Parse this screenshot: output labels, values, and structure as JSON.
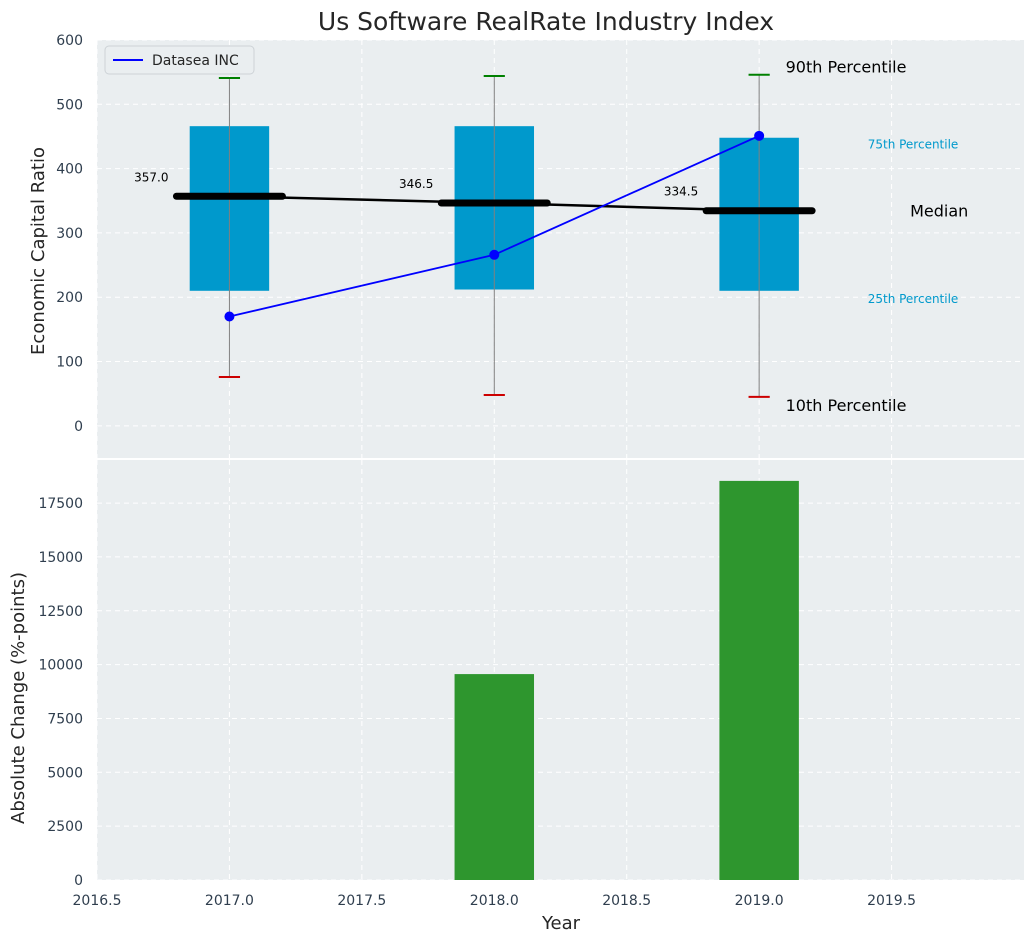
{
  "chart_data": [
    {
      "type": "box",
      "title": "Us Software RealRate Industry Index",
      "ylabel": "Economic Capital Ratio",
      "ylim": [
        -50,
        600
      ],
      "xlim": [
        2016.5,
        2020.0
      ],
      "yticks": [
        0,
        100,
        200,
        300,
        400,
        500,
        600
      ],
      "grid": true,
      "legend": {
        "placement": "top-left",
        "entries": [
          "Datasea INC"
        ]
      },
      "boxes": [
        {
          "x": 2017,
          "p10": 76,
          "p25": 210,
          "median": 357.0,
          "p75": 466,
          "p90": 541,
          "median_label": "357.0"
        },
        {
          "x": 2018,
          "p10": 48,
          "p25": 212,
          "median": 346.5,
          "p75": 466,
          "p90": 544,
          "median_label": "346.5"
        },
        {
          "x": 2019,
          "p10": 45,
          "p25": 210,
          "median": 334.5,
          "p75": 448,
          "p90": 546,
          "median_label": "334.5"
        }
      ],
      "series": [
        {
          "name": "Datasea INC",
          "x": [
            2017,
            2018,
            2019
          ],
          "values": [
            170,
            266,
            451
          ],
          "color": "#0000ff"
        }
      ],
      "annotations": {
        "p90": "90th Percentile",
        "p75": "75th Percentile",
        "median": "Median",
        "p25": "25th Percentile",
        "p10": "10th Percentile"
      },
      "colors": {
        "box": "#0099cc",
        "median": "#000000",
        "p90_cap": "#008000",
        "p10_cap": "#cc0000",
        "whisker": "#808080",
        "background": "#eaeef0"
      }
    },
    {
      "type": "bar",
      "ylabel": "Absolute Change (%-points)",
      "xlabel": "Year",
      "ylim": [
        0,
        19500
      ],
      "xlim": [
        2016.5,
        2020.0
      ],
      "yticks": [
        0,
        2500,
        5000,
        7500,
        10000,
        12500,
        15000,
        17500
      ],
      "xticks": [
        2016.5,
        2017.0,
        2017.5,
        2018.0,
        2018.5,
        2019.0,
        2019.5
      ],
      "xtick_labels": [
        "2016.5",
        "2017.0",
        "2017.5",
        "2018.0",
        "2018.5",
        "2019.0",
        "2019.5"
      ],
      "grid": true,
      "x": [
        2018,
        2019
      ],
      "values": [
        9560,
        18530
      ],
      "colors": {
        "bar": "#2e962e",
        "background": "#eaeef0"
      }
    }
  ]
}
